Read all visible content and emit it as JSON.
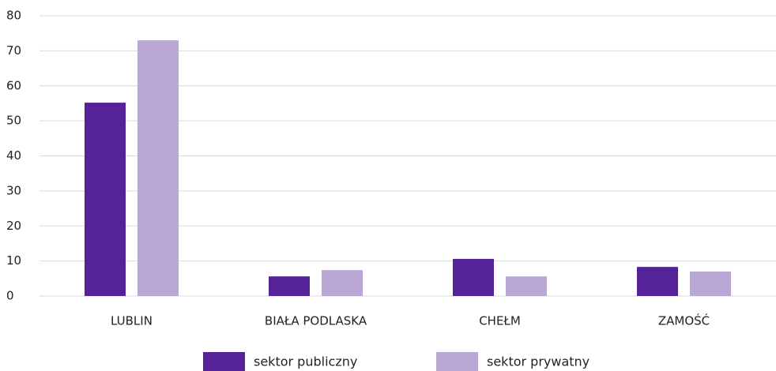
{
  "chart_data": {
    "type": "bar",
    "categories": [
      "LUBLIN",
      "BIAŁA PODLASKA",
      "CHEŁM",
      "ZAMOŚĆ"
    ],
    "series": [
      {
        "name": "sektor publiczny",
        "color": "#55229a",
        "values": [
          55.2,
          5.6,
          10.6,
          8.3
        ]
      },
      {
        "name": "sektor prywatny",
        "color": "#b9a8d6",
        "values": [
          73.0,
          7.4,
          5.6,
          7.0
        ]
      }
    ],
    "ylim": [
      0,
      80
    ],
    "yticks": [
      0,
      10,
      20,
      30,
      40,
      50,
      60,
      70,
      80
    ],
    "grid": true,
    "legend": "bottom"
  }
}
